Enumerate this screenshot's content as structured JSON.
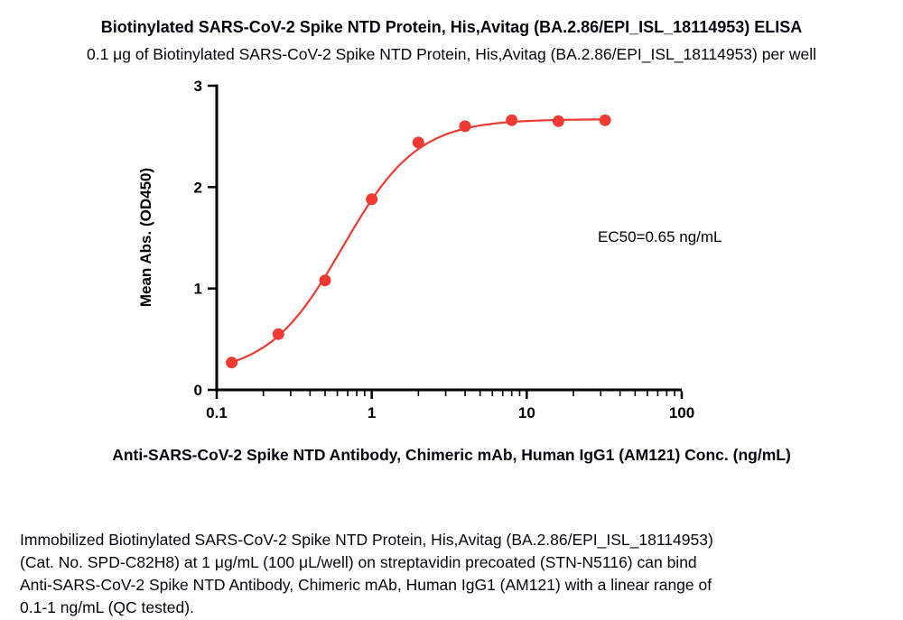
{
  "page": {
    "title": "Biotinylated SARS-CoV-2 Spike NTD Protein, His,Avitag (BA.2.86/EPI_ISL_18114953) ELISA",
    "subtitle": "0.1 μg of Biotinylated SARS-CoV-2 Spike NTD Protein, His,Avitag (BA.2.86/EPI_ISL_18114953) per well",
    "description_lines": [
      "Immobilized Biotinylated SARS-CoV-2 Spike NTD Protein, His,Avitag (BA.2.86/EPI_ISL_18114953)",
      "(Cat. No. SPD-C82H8) at 1 μg/mL (100 μL/well) on streptavidin precoated (STN-N5116) can bind",
      "Anti-SARS-CoV-2 Spike NTD Antibody, Chimeric mAb, Human IgG1 (AM121) with a linear range of",
      "0.1-1 ng/mL (QC tested)."
    ]
  },
  "chart_data": {
    "type": "scatter",
    "x_scale": "log10",
    "x": [
      0.125,
      0.25,
      0.5,
      1,
      2,
      4,
      8,
      16,
      32
    ],
    "y": [
      0.27,
      0.55,
      1.08,
      1.88,
      2.44,
      2.6,
      2.66,
      2.65,
      2.66
    ],
    "title": "Biotinylated SARS-CoV-2 Spike NTD Protein, His,Avitag (BA.2.86/EPI_ISL_18114953) ELISA",
    "xlabel": "Anti-SARS-CoV-2 Spike NTD Antibody, Chimeric mAb, Human IgG1 (AM121) Conc. (ng/mL)",
    "ylabel": "Mean Abs. (OD450)",
    "xlim": [
      0.1,
      100
    ],
    "ylim": [
      0,
      3
    ],
    "y_ticks": [
      0,
      1,
      2,
      3
    ],
    "x_major_ticks": [
      0.1,
      1,
      10,
      100
    ],
    "x_tick_labels": [
      "0.1",
      "1",
      "10",
      "100"
    ],
    "annotation": "EC50=0.65 ng/mL",
    "series_color": "#ee3a33",
    "grid": false,
    "legend": "none",
    "curve_fit": {
      "model": "4PL",
      "bottom": 0.15,
      "top": 2.67,
      "ec50": 0.65,
      "hill": 1.8
    }
  }
}
